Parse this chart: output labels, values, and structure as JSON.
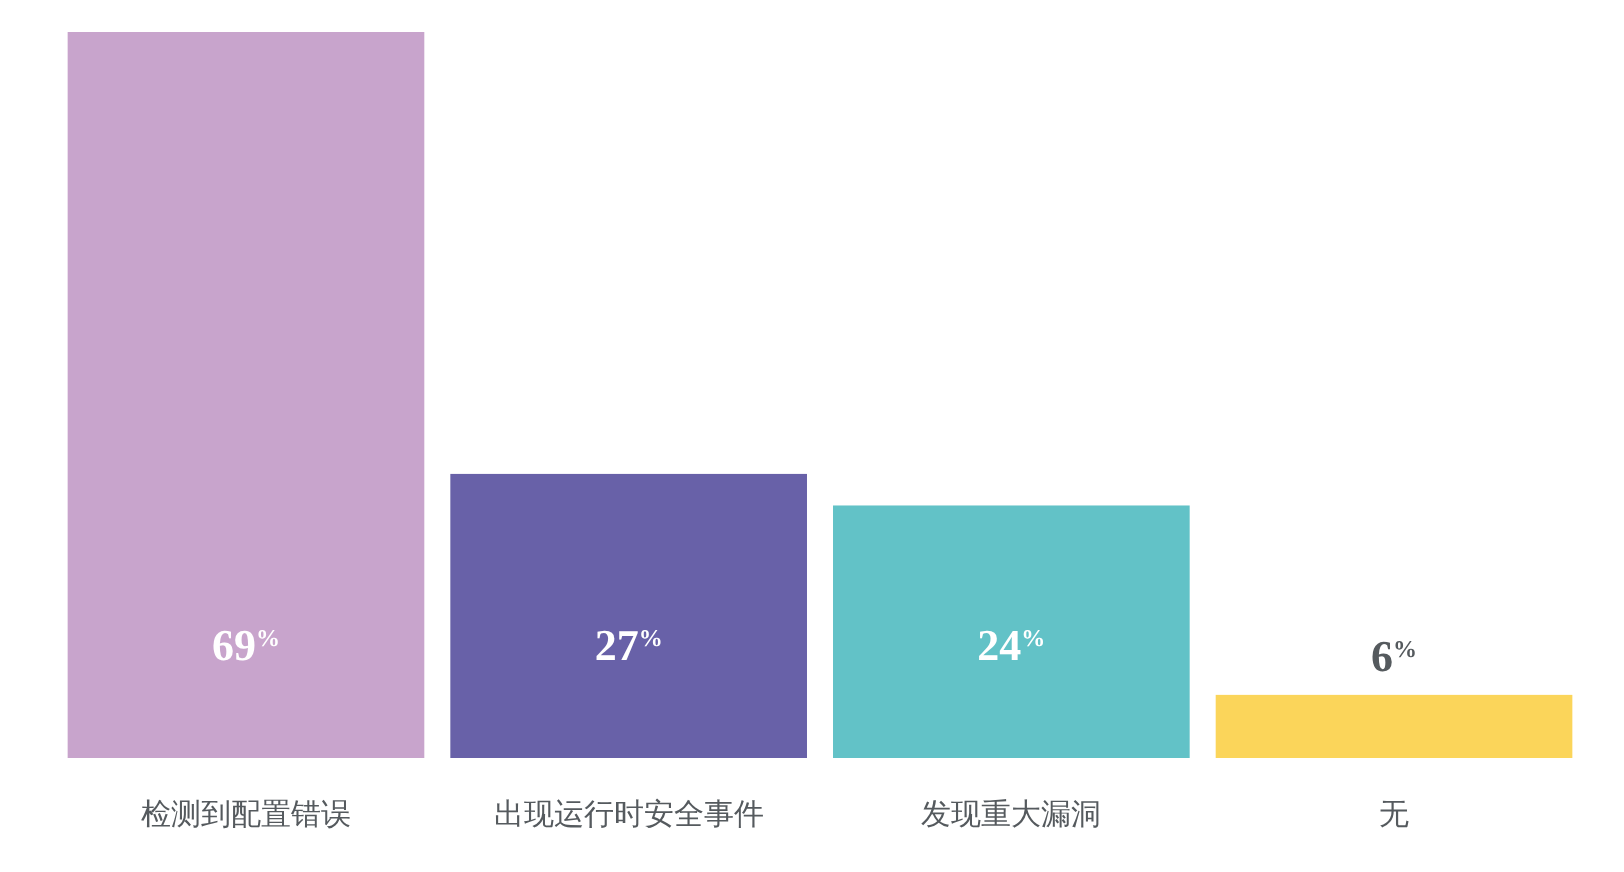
{
  "chart_data": {
    "type": "bar",
    "categories": [
      "检测到配置错误",
      "出现运行时安全事件",
      "发现重大漏洞",
      "无"
    ],
    "values": [
      69,
      27,
      24,
      6
    ],
    "colors": [
      "#c8a4cc",
      "#6861a8",
      "#62c2c7",
      "#fbd55a"
    ],
    "value_labels": [
      "69$^{%}$",
      "27$^{%}$",
      "24$^{%}$",
      "6$^{%}$"
    ],
    "relative": false,
    "ylim": [
      0,
      69
    ],
    "tick_labels": "x"
  }
}
